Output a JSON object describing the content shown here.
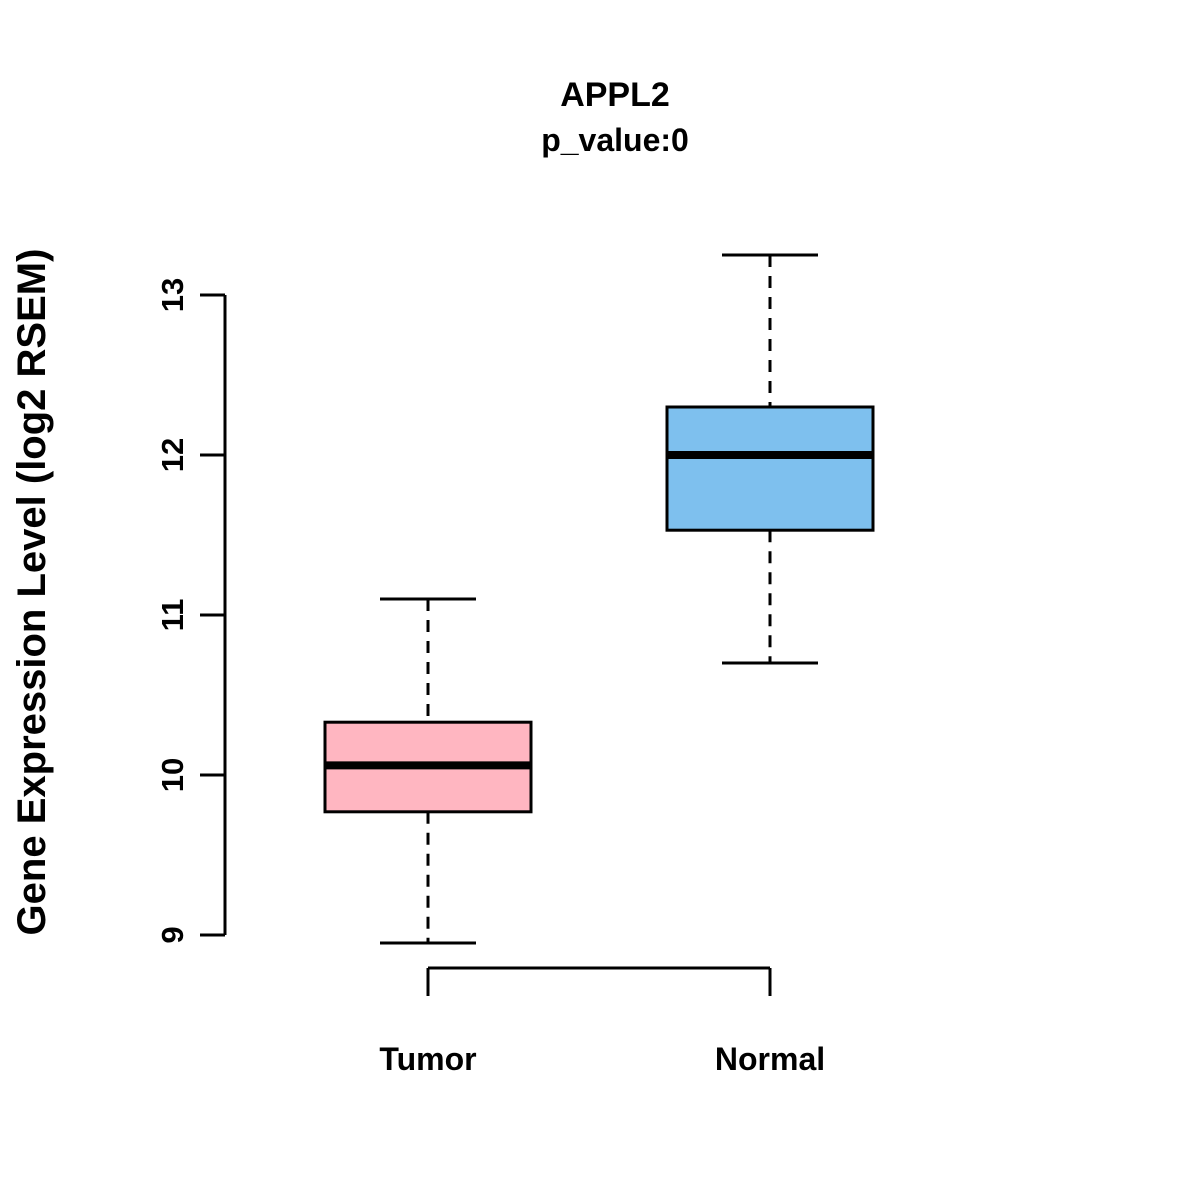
{
  "chart_data": {
    "type": "boxplot",
    "title": "APPL2",
    "subtitle": "p_value:0",
    "ylabel": "Gene Expression Level (log2 RSEM)",
    "xlabel": "",
    "categories": [
      "Tumor",
      "Normal"
    ],
    "series": [
      {
        "name": "Tumor",
        "color": "#FFB6C1",
        "whisker_low": 8.95,
        "q1": 9.77,
        "median": 10.06,
        "q3": 10.33,
        "whisker_high": 11.1
      },
      {
        "name": "Normal",
        "color": "#7EC0EE",
        "whisker_low": 10.7,
        "q1": 11.53,
        "median": 12.0,
        "q3": 12.3,
        "whisker_high": 13.25
      }
    ],
    "yticks": [
      9,
      10,
      11,
      12,
      13
    ],
    "ylim": [
      8.6,
      13.4
    ],
    "grid": false,
    "legend": "none",
    "box_border_color": "#000000",
    "median_color": "#000000"
  }
}
